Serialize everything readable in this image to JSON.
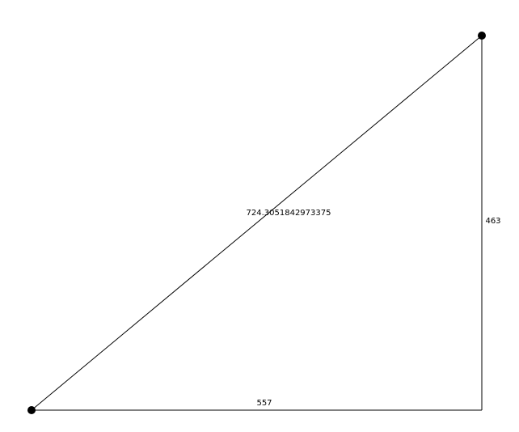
{
  "diagram": {
    "labels": {
      "hypotenuse": "724.3051842973375",
      "vertical_side": "463",
      "horizontal_side": "557"
    },
    "colors": {
      "line": "#000000",
      "vertex": "#000000",
      "background": "#ffffff"
    }
  }
}
